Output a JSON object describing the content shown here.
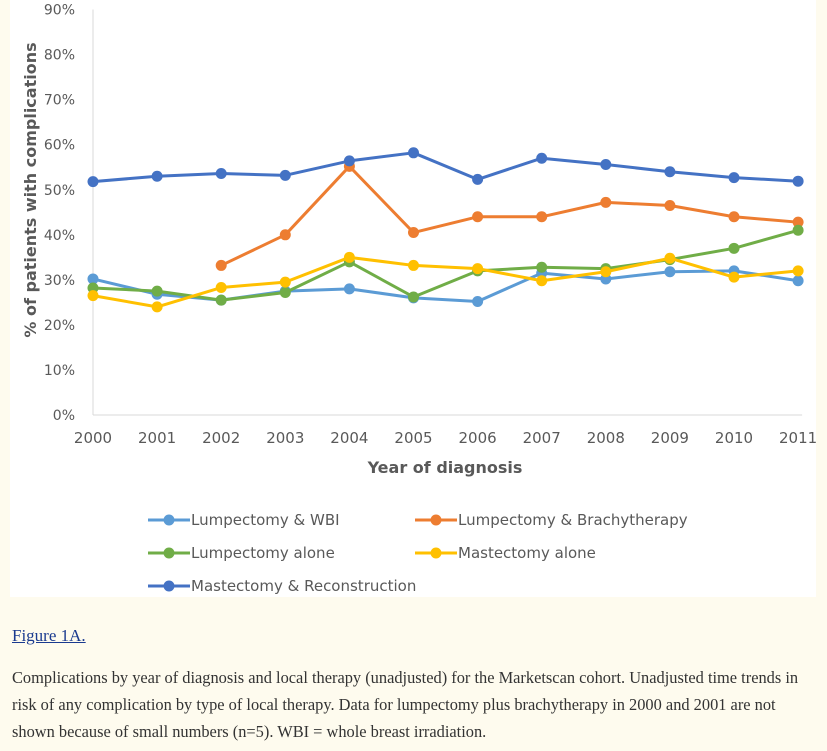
{
  "figure": {
    "link_label": "Figure 1A.",
    "caption": "Complications by year of diagnosis and local therapy (unadjusted) for the Marketscan cohort. Unadjusted time trends in risk of any complication by type of local therapy. Data for lumpectomy plus brachytherapy in 2000 and 2001 are not shown because of small numbers (n=5). WBI = whole breast irradiation."
  },
  "chart_data": {
    "type": "line",
    "title": "",
    "xlabel": "Year of diagnosis",
    "ylabel": "% of patients with complications",
    "categories": [
      "2000",
      "2001",
      "2002",
      "2003",
      "2004",
      "2005",
      "2006",
      "2007",
      "2008",
      "2009",
      "2010",
      "2011"
    ],
    "y_ticks": [
      0,
      10,
      20,
      30,
      40,
      50,
      60,
      70,
      80,
      90
    ],
    "y_tick_labels": [
      "0%",
      "10%",
      "20%",
      "30%",
      "40%",
      "50%",
      "60%",
      "70%",
      "80%",
      "90%"
    ],
    "ylim": [
      0,
      90
    ],
    "grid": false,
    "legend_position": "bottom",
    "series": [
      {
        "name": "Lumpectomy & WBI",
        "color": "#5b9bd5",
        "values": [
          30.2,
          26.8,
          25.5,
          27.5,
          28,
          26,
          25.2,
          31.5,
          30.2,
          31.8,
          32,
          29.8
        ]
      },
      {
        "name": "Lumpectomy & Brachytherapy",
        "color": "#ed7d31",
        "values": [
          null,
          null,
          33.2,
          40,
          55.2,
          40.5,
          44,
          44,
          47.2,
          46.5,
          44,
          42.8
        ]
      },
      {
        "name": "Lumpectomy alone",
        "color": "#70ad47",
        "values": [
          28.2,
          27.5,
          25.5,
          27.2,
          34,
          26.2,
          32,
          32.8,
          32.5,
          34.5,
          37,
          41
        ]
      },
      {
        "name": "Mastectomy alone",
        "color": "#ffc000",
        "values": [
          26.5,
          24,
          28.3,
          29.5,
          35,
          33.2,
          32.5,
          29.8,
          31.8,
          34.8,
          30.6,
          32
        ]
      },
      {
        "name": "Mastectomy & Reconstruction",
        "color": "#4472c4",
        "values": [
          51.8,
          53,
          53.6,
          53.2,
          56.4,
          58.2,
          52.3,
          57,
          55.6,
          54,
          52.7,
          51.9
        ]
      }
    ]
  }
}
